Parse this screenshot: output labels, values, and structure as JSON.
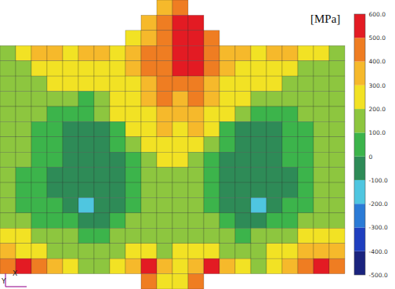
{
  "chart_data": {
    "type": "heatmap",
    "tick_labels": false,
    "axis_labels": {
      "x": "X",
      "y": "Y"
    },
    "color_bar": {
      "label": "[MPa]",
      "range": [
        -500,
        600
      ],
      "ticks": [
        {
          "value": -500,
          "label": "-500.0"
        },
        {
          "value": -400,
          "label": "-400.0"
        },
        {
          "value": -300,
          "label": "-300.0"
        },
        {
          "value": -200,
          "label": "-200.0"
        },
        {
          "value": -100,
          "label": "-100.0"
        },
        0,
        {
          "value": 100,
          "label": "100.0"
        },
        {
          "value": 200,
          "label": "200.0"
        },
        {
          "value": 300,
          "label": "300.0"
        },
        {
          "value": 400,
          "label": "400.0"
        },
        {
          "value": 500,
          "label": "500.0"
        },
        {
          "value": 600,
          "label": "600.0"
        }
      ],
      "colors": [
        "#1a237e",
        "#1f3fbf",
        "#2b7bd6",
        "#4fc6e0",
        "#2e8b57",
        "#3cb44b",
        "#8dc63f",
        "#f2e224",
        "#f6b92b",
        "#ef7d22",
        "#e31b23"
      ]
    },
    "cells": [
      [
        null,
        null,
        null,
        null,
        null,
        null,
        null,
        null,
        null,
        null,
        350,
        450,
        null,
        null,
        null,
        null,
        null,
        null,
        null,
        null,
        null,
        null
      ],
      [
        null,
        null,
        null,
        null,
        null,
        null,
        null,
        null,
        null,
        350,
        450,
        550,
        550,
        null,
        null,
        null,
        null,
        null,
        null,
        null,
        null,
        null
      ],
      [
        null,
        null,
        null,
        null,
        null,
        null,
        null,
        null,
        250,
        350,
        450,
        550,
        550,
        450,
        null,
        null,
        null,
        null,
        null,
        null,
        null,
        null
      ],
      [
        150,
        250,
        350,
        350,
        250,
        350,
        350,
        250,
        350,
        450,
        450,
        550,
        550,
        450,
        350,
        350,
        250,
        350,
        350,
        250,
        250,
        150
      ],
      [
        150,
        150,
        250,
        250,
        250,
        250,
        250,
        250,
        350,
        450,
        450,
        550,
        550,
        450,
        350,
        250,
        250,
        250,
        250,
        150,
        150,
        150
      ],
      [
        150,
        150,
        150,
        250,
        250,
        250,
        250,
        250,
        250,
        350,
        450,
        450,
        450,
        350,
        250,
        250,
        250,
        250,
        150,
        150,
        150,
        150
      ],
      [
        150,
        150,
        150,
        150,
        150,
        50,
        150,
        250,
        250,
        350,
        450,
        350,
        450,
        350,
        250,
        250,
        150,
        150,
        150,
        150,
        150,
        150
      ],
      [
        150,
        150,
        150,
        50,
        50,
        50,
        150,
        250,
        250,
        250,
        350,
        350,
        350,
        250,
        250,
        150,
        50,
        50,
        50,
        150,
        150,
        150
      ],
      [
        150,
        150,
        50,
        50,
        -50,
        -50,
        -50,
        50,
        250,
        250,
        350,
        250,
        350,
        250,
        50,
        -50,
        -50,
        -50,
        50,
        50,
        150,
        150
      ],
      [
        150,
        150,
        50,
        50,
        -50,
        -50,
        -50,
        50,
        150,
        250,
        250,
        250,
        250,
        150,
        50,
        -50,
        -50,
        -50,
        50,
        50,
        150,
        150
      ],
      [
        150,
        150,
        50,
        50,
        -50,
        -50,
        -50,
        -50,
        50,
        150,
        250,
        250,
        150,
        50,
        -50,
        -50,
        -50,
        -50,
        50,
        50,
        150,
        150
      ],
      [
        150,
        50,
        50,
        -50,
        -50,
        -50,
        -50,
        -50,
        50,
        150,
        150,
        150,
        150,
        50,
        -50,
        -50,
        -50,
        -50,
        -50,
        50,
        150,
        150
      ],
      [
        150,
        50,
        50,
        -50,
        -50,
        -50,
        -50,
        -50,
        50,
        150,
        150,
        150,
        150,
        50,
        -50,
        -50,
        -50,
        -50,
        -50,
        50,
        150,
        150
      ],
      [
        150,
        50,
        50,
        50,
        -50,
        -150,
        -50,
        -50,
        50,
        150,
        150,
        150,
        150,
        50,
        -50,
        -50,
        -150,
        -50,
        50,
        50,
        150,
        150
      ],
      [
        150,
        150,
        50,
        50,
        50,
        -50,
        -50,
        50,
        150,
        150,
        150,
        150,
        150,
        150,
        50,
        -50,
        -50,
        50,
        50,
        150,
        150,
        150
      ],
      [
        250,
        250,
        150,
        150,
        150,
        50,
        50,
        150,
        150,
        150,
        150,
        150,
        150,
        150,
        150,
        50,
        150,
        150,
        150,
        250,
        250,
        250
      ],
      [
        350,
        250,
        250,
        150,
        150,
        150,
        150,
        150,
        250,
        250,
        150,
        250,
        250,
        250,
        150,
        150,
        150,
        250,
        250,
        350,
        350,
        350
      ],
      [
        450,
        550,
        450,
        350,
        250,
        150,
        150,
        250,
        350,
        550,
        350,
        250,
        350,
        550,
        350,
        250,
        150,
        250,
        350,
        450,
        550,
        450
      ],
      [
        null,
        null,
        null,
        null,
        null,
        null,
        null,
        null,
        null,
        450,
        250,
        250,
        450,
        null,
        null,
        null,
        null,
        null,
        null,
        null,
        null,
        null
      ]
    ]
  }
}
